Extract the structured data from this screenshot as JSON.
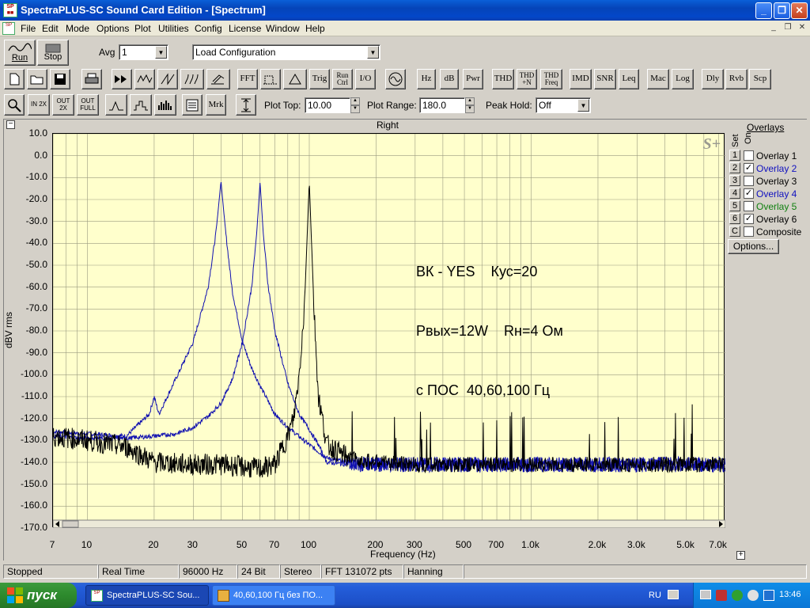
{
  "window": {
    "title": "SpectraPLUS-SC Sound Card Edition - [Spectrum]",
    "min": "_",
    "max": "❐",
    "close": "✕"
  },
  "menu": [
    "File",
    "Edit",
    "Mode",
    "Options",
    "Plot",
    "Utilities",
    "Config",
    "License",
    "Window",
    "Help"
  ],
  "toolbar1": {
    "run_label": "Run",
    "stop_label": "Stop",
    "avg_label": "Avg",
    "avg_value": "1",
    "config_value": "Load Configuration"
  },
  "toolbar2": {
    "text_buttons": [
      "FFT",
      "Trig",
      "Run Ctrl",
      "I/O",
      "Hz",
      "dB",
      "Pwr",
      "THD",
      "THD +N",
      "THD Freq",
      "IMD",
      "SNR",
      "Leq",
      "Mac",
      "Log",
      "Dly",
      "Rvb",
      "Scp"
    ]
  },
  "toolbar3": {
    "zoom_labels": [
      "IN 2X",
      "OUT 2X",
      "OUT FULL"
    ],
    "mrk_label": "Mrk",
    "plot_top_label": "Plot Top:",
    "plot_top_value": "10.00",
    "plot_range_label": "Plot Range:",
    "plot_range_value": "180.0",
    "peak_hold_label": "Peak Hold:",
    "peak_hold_value": "Off"
  },
  "chart": {
    "title": "Right",
    "ylabel": "dBV rms",
    "xlabel": "Frequency (Hz)",
    "watermark": "S+",
    "annotation": [
      "ВК - YES    Кус=20",
      "Рвых=12W    Rн=4 Ом",
      "с ПОС  40,60,100 Гц"
    ],
    "colors": {
      "background": "#ffffcc",
      "overlay_blue": "#1010b0",
      "overlay_black": "#000000"
    }
  },
  "chart_data": {
    "type": "line",
    "title": "Right",
    "xlabel": "Frequency (Hz)",
    "ylabel": "dBV rms",
    "x_scale": "log",
    "xlim": [
      7,
      7500
    ],
    "ylim": [
      -170,
      10
    ],
    "x_ticks": [
      "7",
      "10",
      "20",
      "30",
      "50",
      "70",
      "100",
      "200",
      "300",
      "500",
      "700",
      "1.0k",
      "2.0k",
      "3.0k",
      "5.0k",
      "7.0k"
    ],
    "y_ticks": [
      "10.0",
      "0.0",
      "-10.0",
      "-20.0",
      "-30.0",
      "-40.0",
      "-50.0",
      "-60.0",
      "-70.0",
      "-80.0",
      "-90.0",
      "-100.0",
      "-110.0",
      "-120.0",
      "-130.0",
      "-140.0",
      "-150.0",
      "-160.0",
      "-170.0"
    ],
    "grid": true,
    "series": [
      {
        "name": "Overlay 2",
        "color": "#1010b0",
        "peak_hz": 40,
        "peak_db": -11.5,
        "x": [
          7,
          10,
          15,
          19,
          20,
          21,
          25,
          30,
          35,
          38,
          40,
          42,
          45,
          50,
          55,
          60,
          70,
          80,
          100,
          120,
          150,
          200,
          300,
          500,
          1000,
          2000,
          5000,
          7500
        ],
        "y": [
          -126,
          -127,
          -128,
          -118,
          -110,
          -118,
          -102,
          -85,
          -60,
          -35,
          -11.5,
          -35,
          -62,
          -85,
          -97,
          -105,
          -118,
          -124,
          -132,
          -138,
          -140,
          -141,
          -141,
          -141,
          -141,
          -141,
          -141,
          -141
        ]
      },
      {
        "name": "Overlay 4",
        "color": "#1010b0",
        "peak_hz": 60,
        "peak_db": -12,
        "x": [
          7,
          10,
          15,
          20,
          25,
          30,
          35,
          40,
          45,
          50,
          55,
          58,
          60,
          62,
          65,
          70,
          80,
          90,
          100,
          110,
          120,
          150,
          200,
          300,
          500,
          1000,
          2000,
          5000,
          7500
        ],
        "y": [
          -128,
          -129,
          -129,
          -128,
          -127,
          -124,
          -119,
          -113,
          -102,
          -85,
          -60,
          -35,
          -12,
          -35,
          -58,
          -80,
          -104,
          -118,
          -125,
          -132,
          -140,
          -141,
          -141,
          -141,
          -141,
          -141,
          -141,
          -141,
          -141
        ]
      },
      {
        "name": "Overlay 6",
        "color": "#000000",
        "peak_hz": 100,
        "peak_db": -11.5,
        "x": [
          7,
          10,
          15,
          20,
          30,
          40,
          50,
          60,
          70,
          80,
          85,
          90,
          95,
          100,
          105,
          110,
          120,
          150,
          200,
          300,
          500,
          1000,
          2000,
          5000,
          7500
        ],
        "y": [
          -128,
          -130,
          -133,
          -140,
          -141,
          -141,
          -142,
          -143,
          -141,
          -128,
          -120,
          -100,
          -70,
          -11.5,
          -70,
          -110,
          -132,
          -138,
          -140,
          -141,
          -141,
          -141,
          -141,
          -141,
          -141
        ]
      }
    ]
  },
  "overlays": {
    "heading": "Overlays",
    "set_label": "Set",
    "on_label": "On",
    "items": [
      {
        "num": "1",
        "label": "Overlay 1",
        "checked": false,
        "color": "#000000"
      },
      {
        "num": "2",
        "label": "Overlay 2",
        "checked": true,
        "color": "#1010c0"
      },
      {
        "num": "3",
        "label": "Overlay 3",
        "checked": false,
        "color": "#000000"
      },
      {
        "num": "4",
        "label": "Overlay 4",
        "checked": true,
        "color": "#1010c0"
      },
      {
        "num": "5",
        "label": "Overlay 5",
        "checked": false,
        "color": "#108010"
      },
      {
        "num": "6",
        "label": "Overlay 6",
        "checked": true,
        "color": "#000000"
      },
      {
        "num": "C",
        "label": "Composite",
        "checked": false,
        "color": "#000000"
      }
    ],
    "options_label": "Options..."
  },
  "status": [
    "Stopped",
    "Real Time",
    "96000 Hz",
    "24 Bit",
    "Stereo",
    "FFT 131072 pts",
    "Hanning"
  ],
  "taskbar": {
    "start_label": "пуск",
    "tasks": [
      "SpectraPLUS-SC Sou...",
      "40,60,100 Гц без ПО..."
    ],
    "lang": "RU",
    "clock": "13:46"
  }
}
